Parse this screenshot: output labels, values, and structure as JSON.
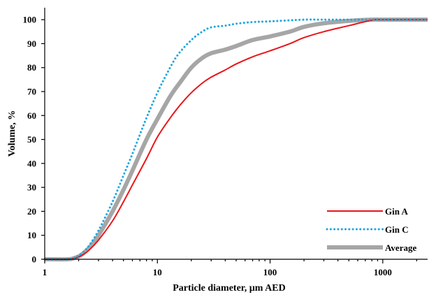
{
  "chart_data": {
    "type": "line",
    "xlabel": "Particle diameter, µm AED",
    "ylabel": "Volume, %",
    "xscale": "log",
    "xlim": [
      1,
      2500
    ],
    "ylim": [
      0,
      105
    ],
    "xticks": [
      1,
      10,
      100,
      1000
    ],
    "xtick_labels": [
      "1",
      "10",
      "100",
      "1000"
    ],
    "yticks": [
      0,
      10,
      20,
      30,
      40,
      50,
      60,
      70,
      80,
      90,
      100
    ],
    "ytick_labels": [
      "0",
      "10",
      "20",
      "30",
      "40",
      "50",
      "60",
      "70",
      "80",
      "90",
      "100"
    ],
    "grid": false,
    "legend": "bottom-right",
    "series": [
      {
        "name": "Gin A",
        "color": "#e8161a",
        "style": "solid",
        "x": [
          1,
          1.6,
          1.8,
          2,
          2.2,
          2.5,
          3,
          4,
          5,
          6,
          8,
          10,
          13,
          16,
          20,
          25,
          30,
          40,
          50,
          70,
          100,
          150,
          200,
          300,
          500,
          800,
          1000,
          2500
        ],
        "y": [
          0,
          0,
          0.3,
          1,
          2,
          4,
          8,
          16,
          24,
          31,
          42,
          51,
          59,
          64.5,
          69.5,
          73.5,
          76,
          79,
          81.5,
          84.5,
          87,
          90,
          92.5,
          95,
          97.5,
          99.8,
          100,
          100
        ]
      },
      {
        "name": "Gin C",
        "color": "#1ea6e0",
        "style": "dotted",
        "x": [
          1,
          1.6,
          1.8,
          2,
          2.2,
          2.5,
          3,
          4,
          5,
          6,
          8,
          10,
          12,
          15,
          20,
          25,
          30,
          40,
          50,
          70,
          100,
          200,
          300,
          500,
          1000,
          2500
        ],
        "y": [
          0,
          0,
          0.5,
          1.5,
          3,
          6,
          12,
          24,
          35,
          44,
          59,
          69.5,
          77,
          85,
          91.5,
          95,
          96.8,
          97.5,
          98.3,
          99,
          99.3,
          100,
          100,
          100,
          100,
          100
        ]
      },
      {
        "name": "Average",
        "color": "#a6a6a6",
        "style": "solid-thick",
        "x": [
          1,
          1.6,
          1.8,
          2,
          2.2,
          2.5,
          3,
          4,
          5,
          6,
          8,
          10,
          13,
          16,
          20,
          25,
          30,
          40,
          50,
          70,
          100,
          150,
          200,
          300,
          500,
          800,
          1000,
          2500
        ],
        "y": [
          0,
          0,
          0.4,
          1.2,
          2.5,
          5,
          10,
          20,
          29,
          37,
          50,
          58.5,
          68,
          74,
          80,
          84,
          86,
          87.5,
          89,
          91.5,
          93,
          95,
          97,
          98.5,
          99.5,
          100,
          100,
          100
        ]
      }
    ]
  }
}
